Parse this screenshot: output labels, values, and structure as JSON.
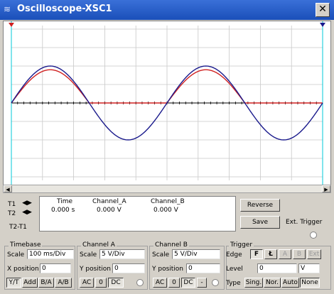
{
  "window": {
    "title": "Oscilloscope-XSC1",
    "close_glyph": "✕"
  },
  "cursors": {
    "t1": "T1",
    "t2": "T2",
    "t2_t1": "T2-T1"
  },
  "readout": {
    "headers": [
      "Time",
      "Channel_A",
      "Channel_B"
    ],
    "values": [
      "0.000 s",
      "0.000 V",
      "0.000 V"
    ]
  },
  "buttons": {
    "reverse": "Reverse",
    "save": "Save"
  },
  "ext_trigger": {
    "label": "Ext. Trigger"
  },
  "timebase": {
    "title": "Timebase",
    "scale_label": "Scale",
    "scale_value": "100 ms/Div",
    "xpos_label": "X position",
    "xpos_value": "0",
    "modes": [
      "Y/T",
      "Add",
      "B/A",
      "A/B"
    ]
  },
  "channel_a": {
    "title": "Channel A",
    "scale_label": "Scale",
    "scale_value": "5  V/Div",
    "ypos_label": "Y position",
    "ypos_value": "0",
    "coupling": [
      "AC",
      "0",
      "DC"
    ]
  },
  "channel_b": {
    "title": "Channel B",
    "scale_label": "Scale",
    "scale_value": "5  V/Div",
    "ypos_label": "Y position",
    "ypos_value": "0",
    "coupling": [
      "AC",
      "0",
      "DC",
      "-"
    ]
  },
  "trigger": {
    "title": "Trigger",
    "edge_label": "Edge",
    "edge_buttons": [
      "F",
      "Ł",
      "A",
      "B",
      "Ext"
    ],
    "level_label": "Level",
    "level_value": "0",
    "level_unit": "V",
    "type_label": "Type",
    "types": [
      "Sing.",
      "Nor.",
      "Auto",
      "None"
    ]
  },
  "colors": {
    "channel_a": "#d02020",
    "channel_b": "#1a1a8c",
    "cursor1": "#d02020",
    "cursor2": "#1a1a8c"
  },
  "chart_data": {
    "type": "line",
    "grid": true,
    "xlim": [
      0,
      1000
    ],
    "ylim": [
      -20,
      20
    ],
    "series": [
      {
        "role": "channel_a",
        "amplitude": 9,
        "period": 500
      },
      {
        "role": "channel_b",
        "amplitude": 10,
        "period": 500
      }
    ]
  }
}
